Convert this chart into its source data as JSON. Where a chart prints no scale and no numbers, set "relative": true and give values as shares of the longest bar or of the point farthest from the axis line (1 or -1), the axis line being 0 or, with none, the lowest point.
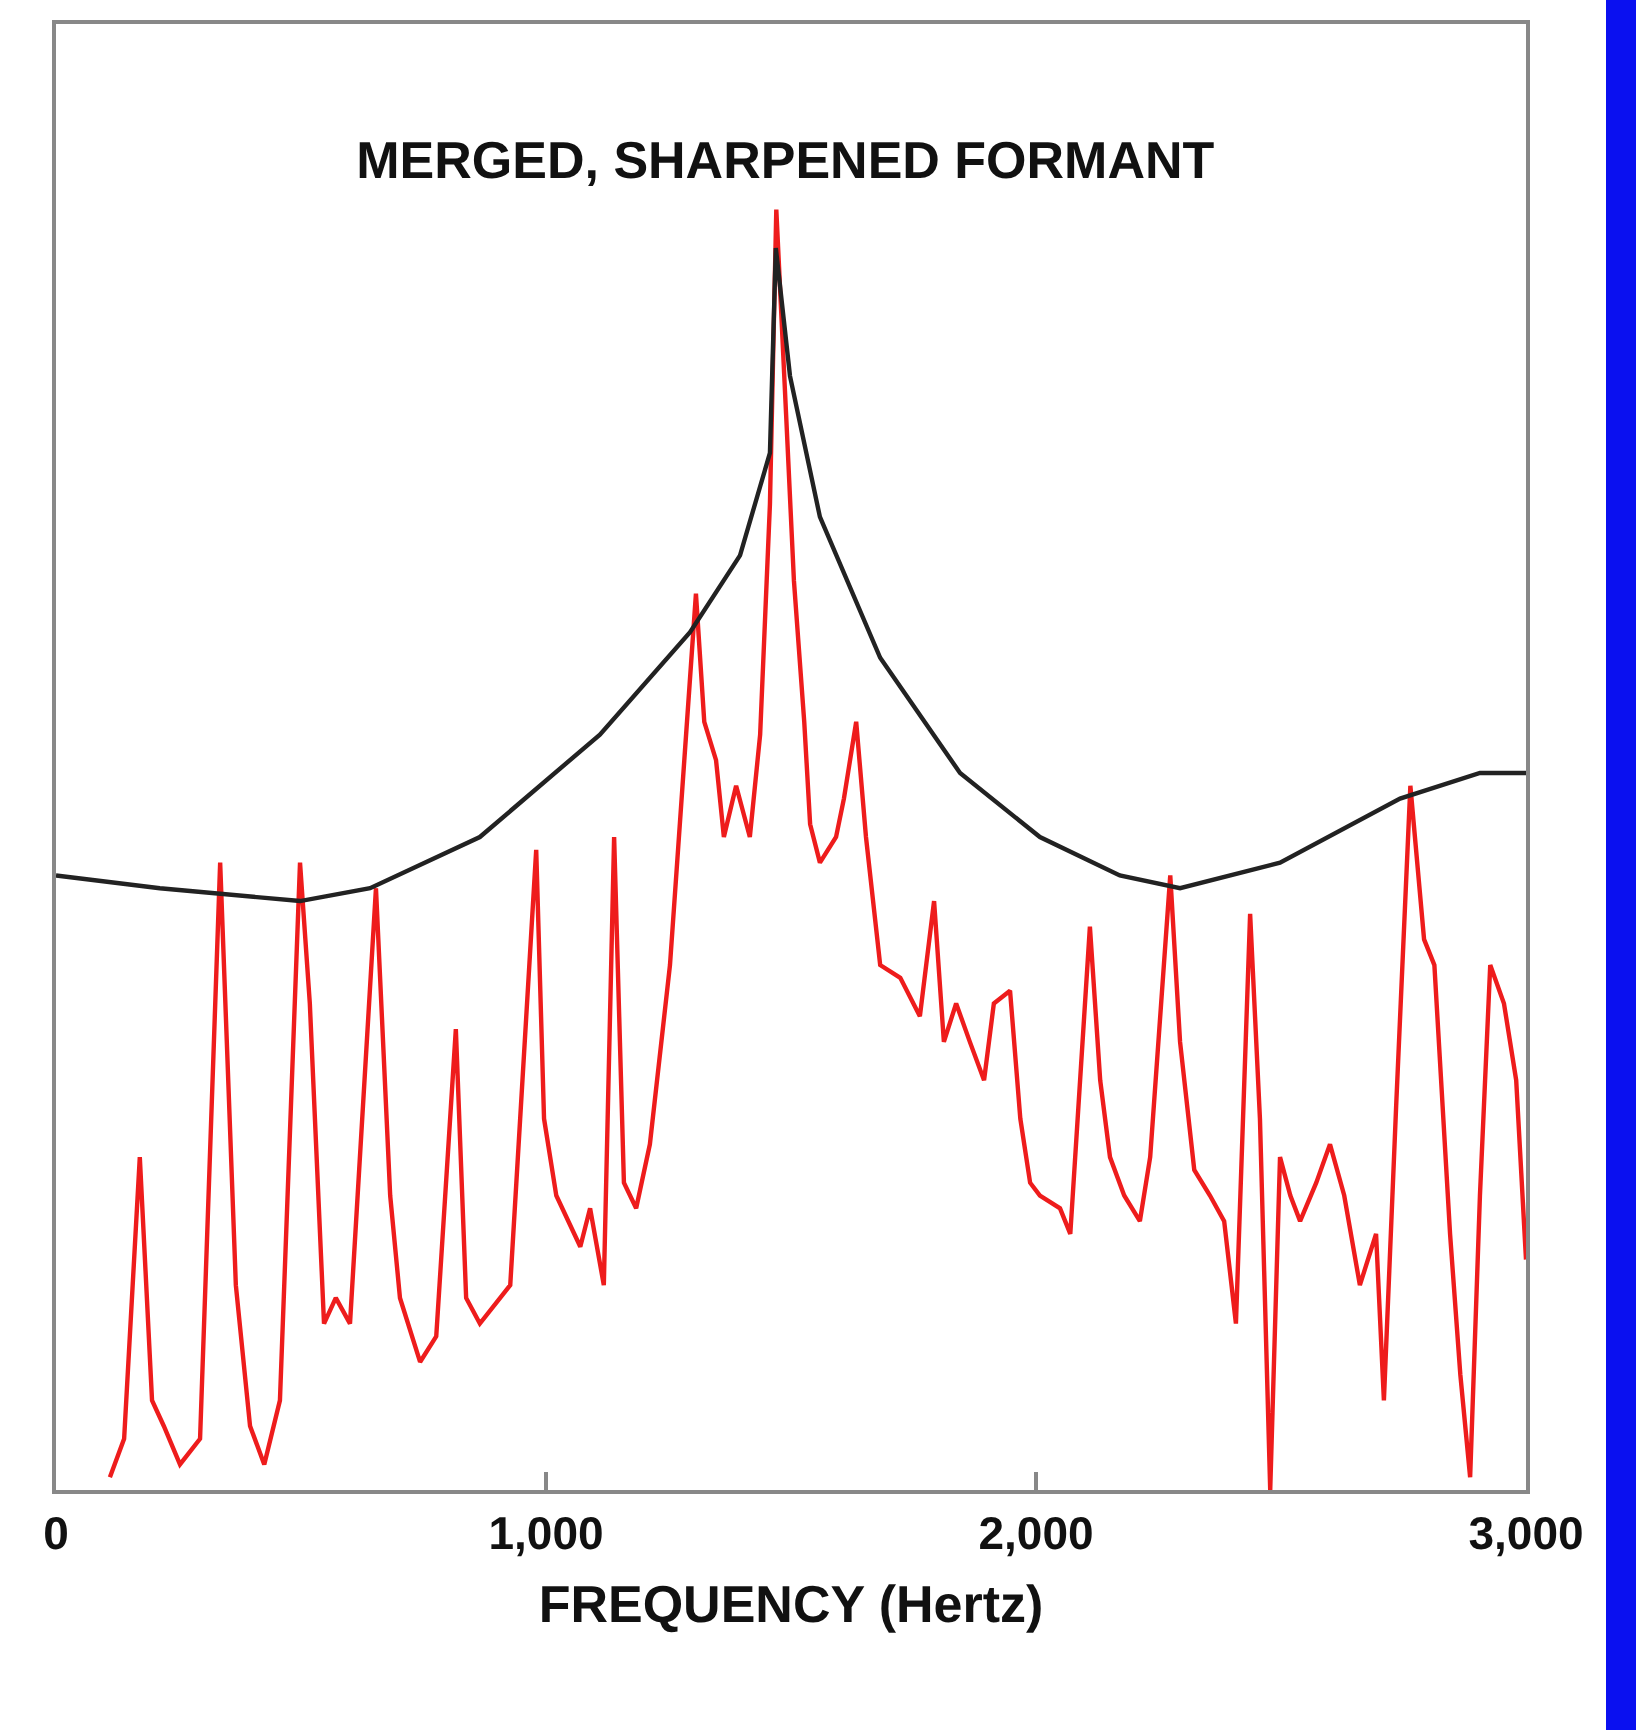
{
  "chart_data": {
    "type": "line",
    "title": "MERGED, SHARPENED FORMANT",
    "xlabel": "FREQUENCY (Hertz)",
    "relative": true,
    "grid": false,
    "marker": "none",
    "line_style": "solid",
    "xlim": [
      0,
      3000
    ],
    "xticks": [
      0,
      {
        "value": 1000,
        "label": "1,000"
      },
      {
        "value": 2000,
        "label": "2,000"
      },
      {
        "value": 3000,
        "label": "3,000"
      }
    ],
    "series": [
      {
        "color": "#ee1c1c",
        "x": [
          110,
          139,
          171,
          196,
          220,
          253,
          294,
          335,
          367,
          396,
          425,
          457,
          498,
          518,
          547,
          571,
          600,
          653,
          682,
          702,
          743,
          776,
          816,
          837,
          865,
          927,
          980,
          996,
          1021,
          1070,
          1090,
          1118,
          1139,
          1159,
          1184,
          1212,
          1253,
          1306,
          1323,
          1347,
          1363,
          1388,
          1416,
          1437,
          1457,
          1470,
          1490,
          1506,
          1527,
          1539,
          1559,
          1592,
          1608,
          1633,
          1653,
          1682,
          1723,
          1763,
          1792,
          1812,
          1837,
          1865,
          1894,
          1914,
          1947,
          1968,
          1988,
          2008,
          2049,
          2070,
          2110,
          2131,
          2151,
          2180,
          2212,
          2233,
          2274,
          2294,
          2323,
          2355,
          2384,
          2408,
          2437,
          2457,
          2478,
          2498,
          2519,
          2539,
          2572,
          2600,
          2629,
          2661,
          2694,
          2710,
          2735,
          2764,
          2792,
          2813,
          2845,
          2866,
          2886,
          2906,
          2927,
          2955,
          2980,
          3000
        ],
        "values": [
          0.01,
          0.04,
          0.26,
          0.07,
          0.05,
          0.02,
          0.04,
          0.49,
          0.16,
          0.05,
          0.02,
          0.07,
          0.49,
          0.38,
          0.13,
          0.15,
          0.13,
          0.47,
          0.23,
          0.15,
          0.1,
          0.12,
          0.36,
          0.15,
          0.13,
          0.16,
          0.5,
          0.29,
          0.23,
          0.19,
          0.22,
          0.16,
          0.51,
          0.24,
          0.22,
          0.27,
          0.41,
          0.7,
          0.6,
          0.57,
          0.51,
          0.55,
          0.51,
          0.59,
          0.77,
          1,
          0.84,
          0.71,
          0.6,
          0.52,
          0.49,
          0.51,
          0.54,
          0.6,
          0.51,
          0.41,
          0.4,
          0.37,
          0.46,
          0.35,
          0.38,
          0.35,
          0.32,
          0.38,
          0.39,
          0.29,
          0.24,
          0.23,
          0.22,
          0.2,
          0.44,
          0.32,
          0.26,
          0.23,
          0.21,
          0.26,
          0.48,
          0.35,
          0.25,
          0.23,
          0.21,
          0.13,
          0.45,
          0.29,
          0,
          0.26,
          0.23,
          0.21,
          0.24,
          0.27,
          0.23,
          0.16,
          0.2,
          0.07,
          0.3,
          0.55,
          0.43,
          0.41,
          0.2,
          0.09,
          0.01,
          0.23,
          0.41,
          0.38,
          0.32,
          0.18
        ]
      },
      {
        "color": "#222222",
        "x": [
          0,
          212,
          498,
          641,
          865,
          1110,
          1294,
          1396,
          1457,
          1469,
          1498,
          1559,
          1682,
          1845,
          2008,
          2171,
          2294,
          2498,
          2743,
          2906,
          3000
        ],
        "values": [
          0.48,
          0.47,
          0.46,
          0.47,
          0.51,
          0.59,
          0.67,
          0.73,
          0.81,
          0.97,
          0.87,
          0.76,
          0.65,
          0.56,
          0.51,
          0.48,
          0.47,
          0.49,
          0.54,
          0.56,
          0.56
        ]
      }
    ]
  }
}
